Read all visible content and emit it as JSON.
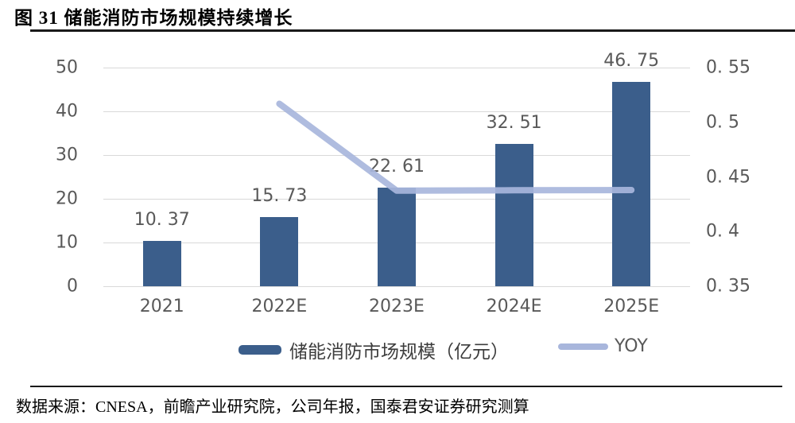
{
  "figure": {
    "title": "图 31 储能消防市场规模持续增长",
    "source": "数据来源：CNESA，前瞻产业研究院，公司年报，国泰君安证券研究测算"
  },
  "legend": {
    "bar_label": "储能消防市场规模（亿元）",
    "line_label": "YOY"
  },
  "colors": {
    "bar": "#3b5e8b",
    "line": "#a8b6dc",
    "grid": "#d9d9d9",
    "tick_text": "#595959",
    "rule": "#1a1a1a"
  },
  "chart_data": {
    "type": "combo_bar_line",
    "title": "图 31 储能消防市场规模持续增长",
    "categories": [
      "2021",
      "2022E",
      "2023E",
      "2024E",
      "2025E"
    ],
    "series": [
      {
        "name": "储能消防市场规模（亿元）",
        "type": "bar",
        "axis": "left",
        "values": [
          10.37,
          15.73,
          22.61,
          32.51,
          46.75
        ],
        "value_labels": [
          "10. 37",
          "15. 73",
          "22. 61",
          "32. 51",
          "46. 75"
        ],
        "color": "#3b5e8b"
      },
      {
        "name": "YOY",
        "type": "line",
        "axis": "right",
        "values": [
          null,
          0.5169,
          0.4374,
          0.4378,
          0.438
        ],
        "color": "#a8b6dc"
      }
    ],
    "left_axis": {
      "min": 0,
      "max": 50,
      "tick_labels": [
        "50",
        "40",
        "30",
        "20",
        "10",
        "0"
      ]
    },
    "right_axis": {
      "min": 0.35,
      "max": 0.55,
      "tick_labels": [
        "0. 55",
        "0. 5",
        "0. 45",
        "0. 4",
        "0. 35"
      ]
    },
    "grid": "horizontal",
    "legend_position": "bottom"
  }
}
